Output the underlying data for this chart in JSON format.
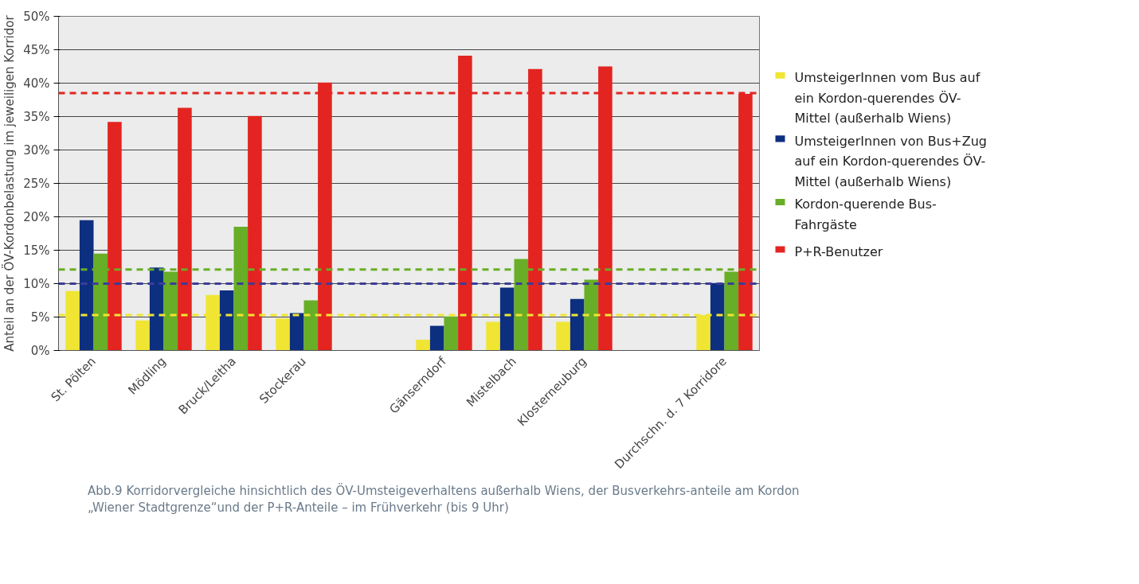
{
  "chart_data": {
    "type": "bar",
    "ylabel": "Anteil an der ÖV-Kordonbelastung im jeweiligen Korridor",
    "categories": [
      "St. Pölten",
      "Mödling",
      "Bruck/Leitha",
      "Stockerau",
      null,
      "Gänserndorf",
      "Mistelbach",
      "Klosterneuburg",
      null,
      "Durchschn. d. 7 Korridore"
    ],
    "series": [
      {
        "name": "UmsteigerInnen vom Bus auf ein Kordon-querendes ÖV-Mittel (außerhalb Wiens)",
        "color": "#f0e532",
        "values": [
          8.9,
          4.5,
          8.3,
          4.8,
          null,
          1.6,
          4.3,
          4.3,
          null,
          5.3
        ]
      },
      {
        "name": "UmsteigerInnen von Bus+Zug auf ein Kordon-querendes ÖV-Mittel (außerhalb Wiens)",
        "color": "#0d2f80",
        "values": [
          19.5,
          12.4,
          9.0,
          5.6,
          null,
          3.7,
          9.4,
          7.7,
          null,
          10.1
        ]
      },
      {
        "name": "Kordon-querende Bus-Fahrgäste",
        "color": "#68ae26",
        "values": [
          14.5,
          11.8,
          18.5,
          7.5,
          null,
          5.1,
          13.7,
          10.6,
          null,
          11.8
        ]
      },
      {
        "name": "P+R-Benutzer",
        "color": "#e32420",
        "values": [
          34.2,
          36.3,
          35.1,
          40.1,
          null,
          44.1,
          42.1,
          42.5,
          null,
          38.4
        ]
      }
    ],
    "ylim": [
      0,
      50
    ],
    "yticks": [
      {
        "value": 0,
        "label": "0%"
      },
      {
        "value": 5,
        "label": "5%"
      },
      {
        "value": 10,
        "label": "10%"
      },
      {
        "value": 15,
        "label": "15%"
      },
      {
        "value": 20,
        "label": "20%"
      },
      {
        "value": 25,
        "label": "25%"
      },
      {
        "value": 30,
        "label": "30%"
      },
      {
        "value": 35,
        "label": "35%"
      },
      {
        "value": 40,
        "label": "40%"
      },
      {
        "value": 45,
        "label": "45%"
      },
      {
        "value": 50,
        "label": "50%"
      }
    ],
    "ref_lines": [
      {
        "axis": "y",
        "value": 38.5,
        "color": "#e32420",
        "line_style": "dashed"
      },
      {
        "axis": "y",
        "value": 12.1,
        "color": "#68ae26",
        "line_style": "dashed"
      },
      {
        "axis": "y",
        "value": 10.0,
        "color": "#3c3c9a",
        "line_style": "dashed"
      },
      {
        "axis": "y",
        "value": 5.3,
        "color": "#f0e532",
        "line_style": "dashed"
      }
    ],
    "grid": "y",
    "legend": "right",
    "annotations": [
      "Abb.9 Korridorvergleiche hinsichtlich des ÖV-Umsteigeverhaltens außerhalb Wiens, der Busverkehrs-anteile am Kordon „Wiener Stadtgrenze“und der P+R-Anteile – im Frühverkehr (bis 9 Uhr)"
    ]
  }
}
